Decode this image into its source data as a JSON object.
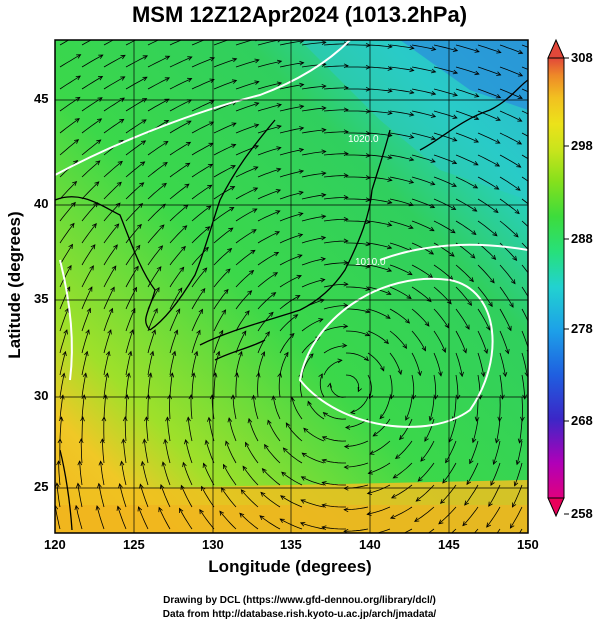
{
  "title": "MSM 12Z12Apr2024 (1013.2hPa)",
  "axes": {
    "xlabel": "Longitude (degrees)",
    "ylabel": "Latitude  (degrees)",
    "xticks": [
      "120",
      "125",
      "130",
      "135",
      "140",
      "145",
      "150"
    ],
    "yticks": [
      "45",
      "40",
      "35",
      "30",
      "25"
    ]
  },
  "colorbar": {
    "ticks": [
      "308",
      "298",
      "288",
      "278",
      "268",
      "258"
    ],
    "colors": [
      "#e8005a",
      "#e0007e",
      "#b000b8",
      "#3b27c7",
      "#1f5fe0",
      "#1da0e8",
      "#22d2d0",
      "#27e07a",
      "#3ddc3c",
      "#86e01c",
      "#c8e41c",
      "#ece21a",
      "#f2c020",
      "#ee8a28",
      "#e2483a"
    ]
  },
  "contours": [
    {
      "label": "1010.0"
    },
    {
      "label": "1020.0"
    }
  ],
  "credits": {
    "line1": "Drawing by DCL (https://www.gfd-dennou.org/library/dcl/)",
    "line2": "Data from http://database.rish.kyoto-u.ac.jp/arch/jmadata/"
  }
}
